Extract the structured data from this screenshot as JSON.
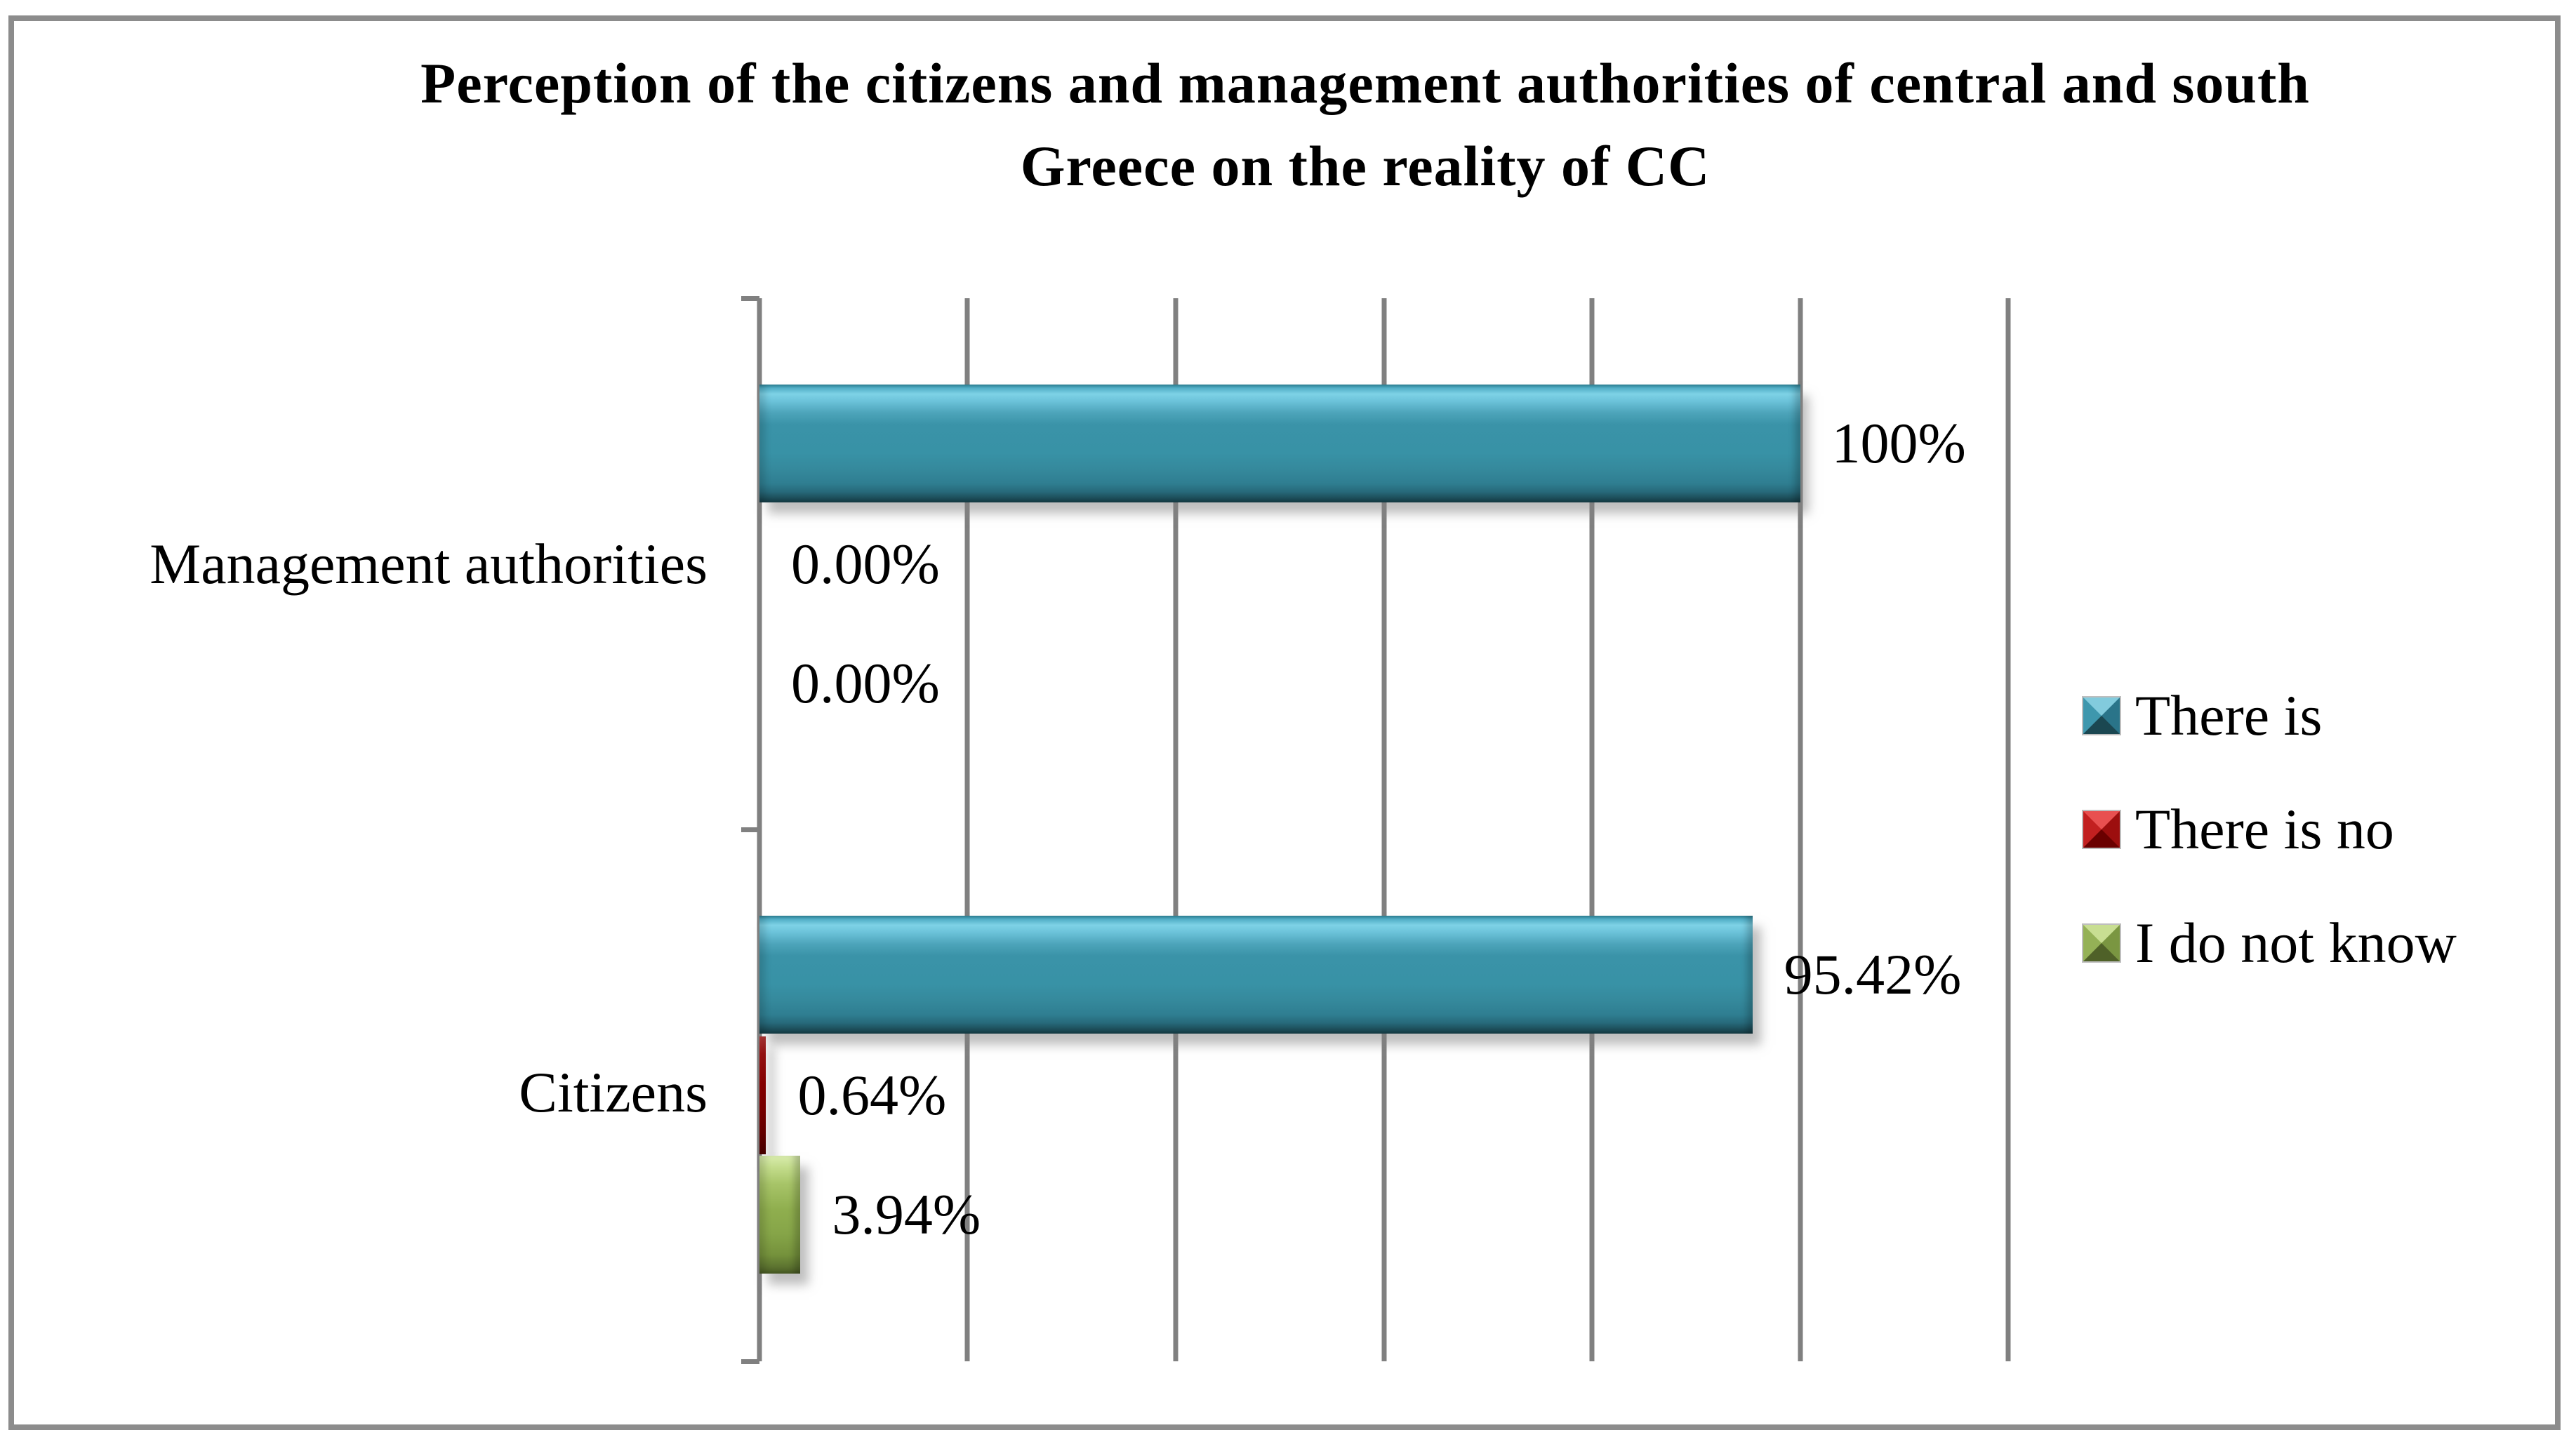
{
  "title": {
    "line1": "Perception of the citizens and management authorities of central and south",
    "line2": "Greece on the reality of CC"
  },
  "chart_data": {
    "type": "bar",
    "orientation": "horizontal",
    "title": "Perception of the citizens and management authorities of central and south Greece on the reality of CC",
    "categories": [
      "Management authorities",
      "Citizens"
    ],
    "series": [
      {
        "name": "There is",
        "color": "#3793A7",
        "values": [
          100,
          95.42
        ],
        "labels": [
          "100%",
          "95.42%"
        ]
      },
      {
        "name": "There is no",
        "color": "#C00000",
        "values": [
          0,
          0.64
        ],
        "labels": [
          "0.00%",
          "0.64%"
        ]
      },
      {
        "name": "I do not know",
        "color": "#8FAE4E",
        "values": [
          0,
          3.94
        ],
        "labels": [
          "0.00%",
          "3.94%"
        ]
      }
    ],
    "xlabel": "",
    "ylabel": "",
    "axis": {
      "min": 0,
      "max": 120,
      "gridline_interval": 20,
      "grid": "vertical-only",
      "tick_labels_visible": false
    },
    "legend": {
      "position": "right",
      "entries": [
        "There is",
        "There is no",
        "I do not know"
      ]
    }
  },
  "colors": {
    "gridline": "#808080",
    "frame_border": "#8C8C8C",
    "background": "#FFFFFF",
    "series_teal": "#3793A7",
    "series_red": "#C00000",
    "series_green": "#8FAE4E"
  }
}
